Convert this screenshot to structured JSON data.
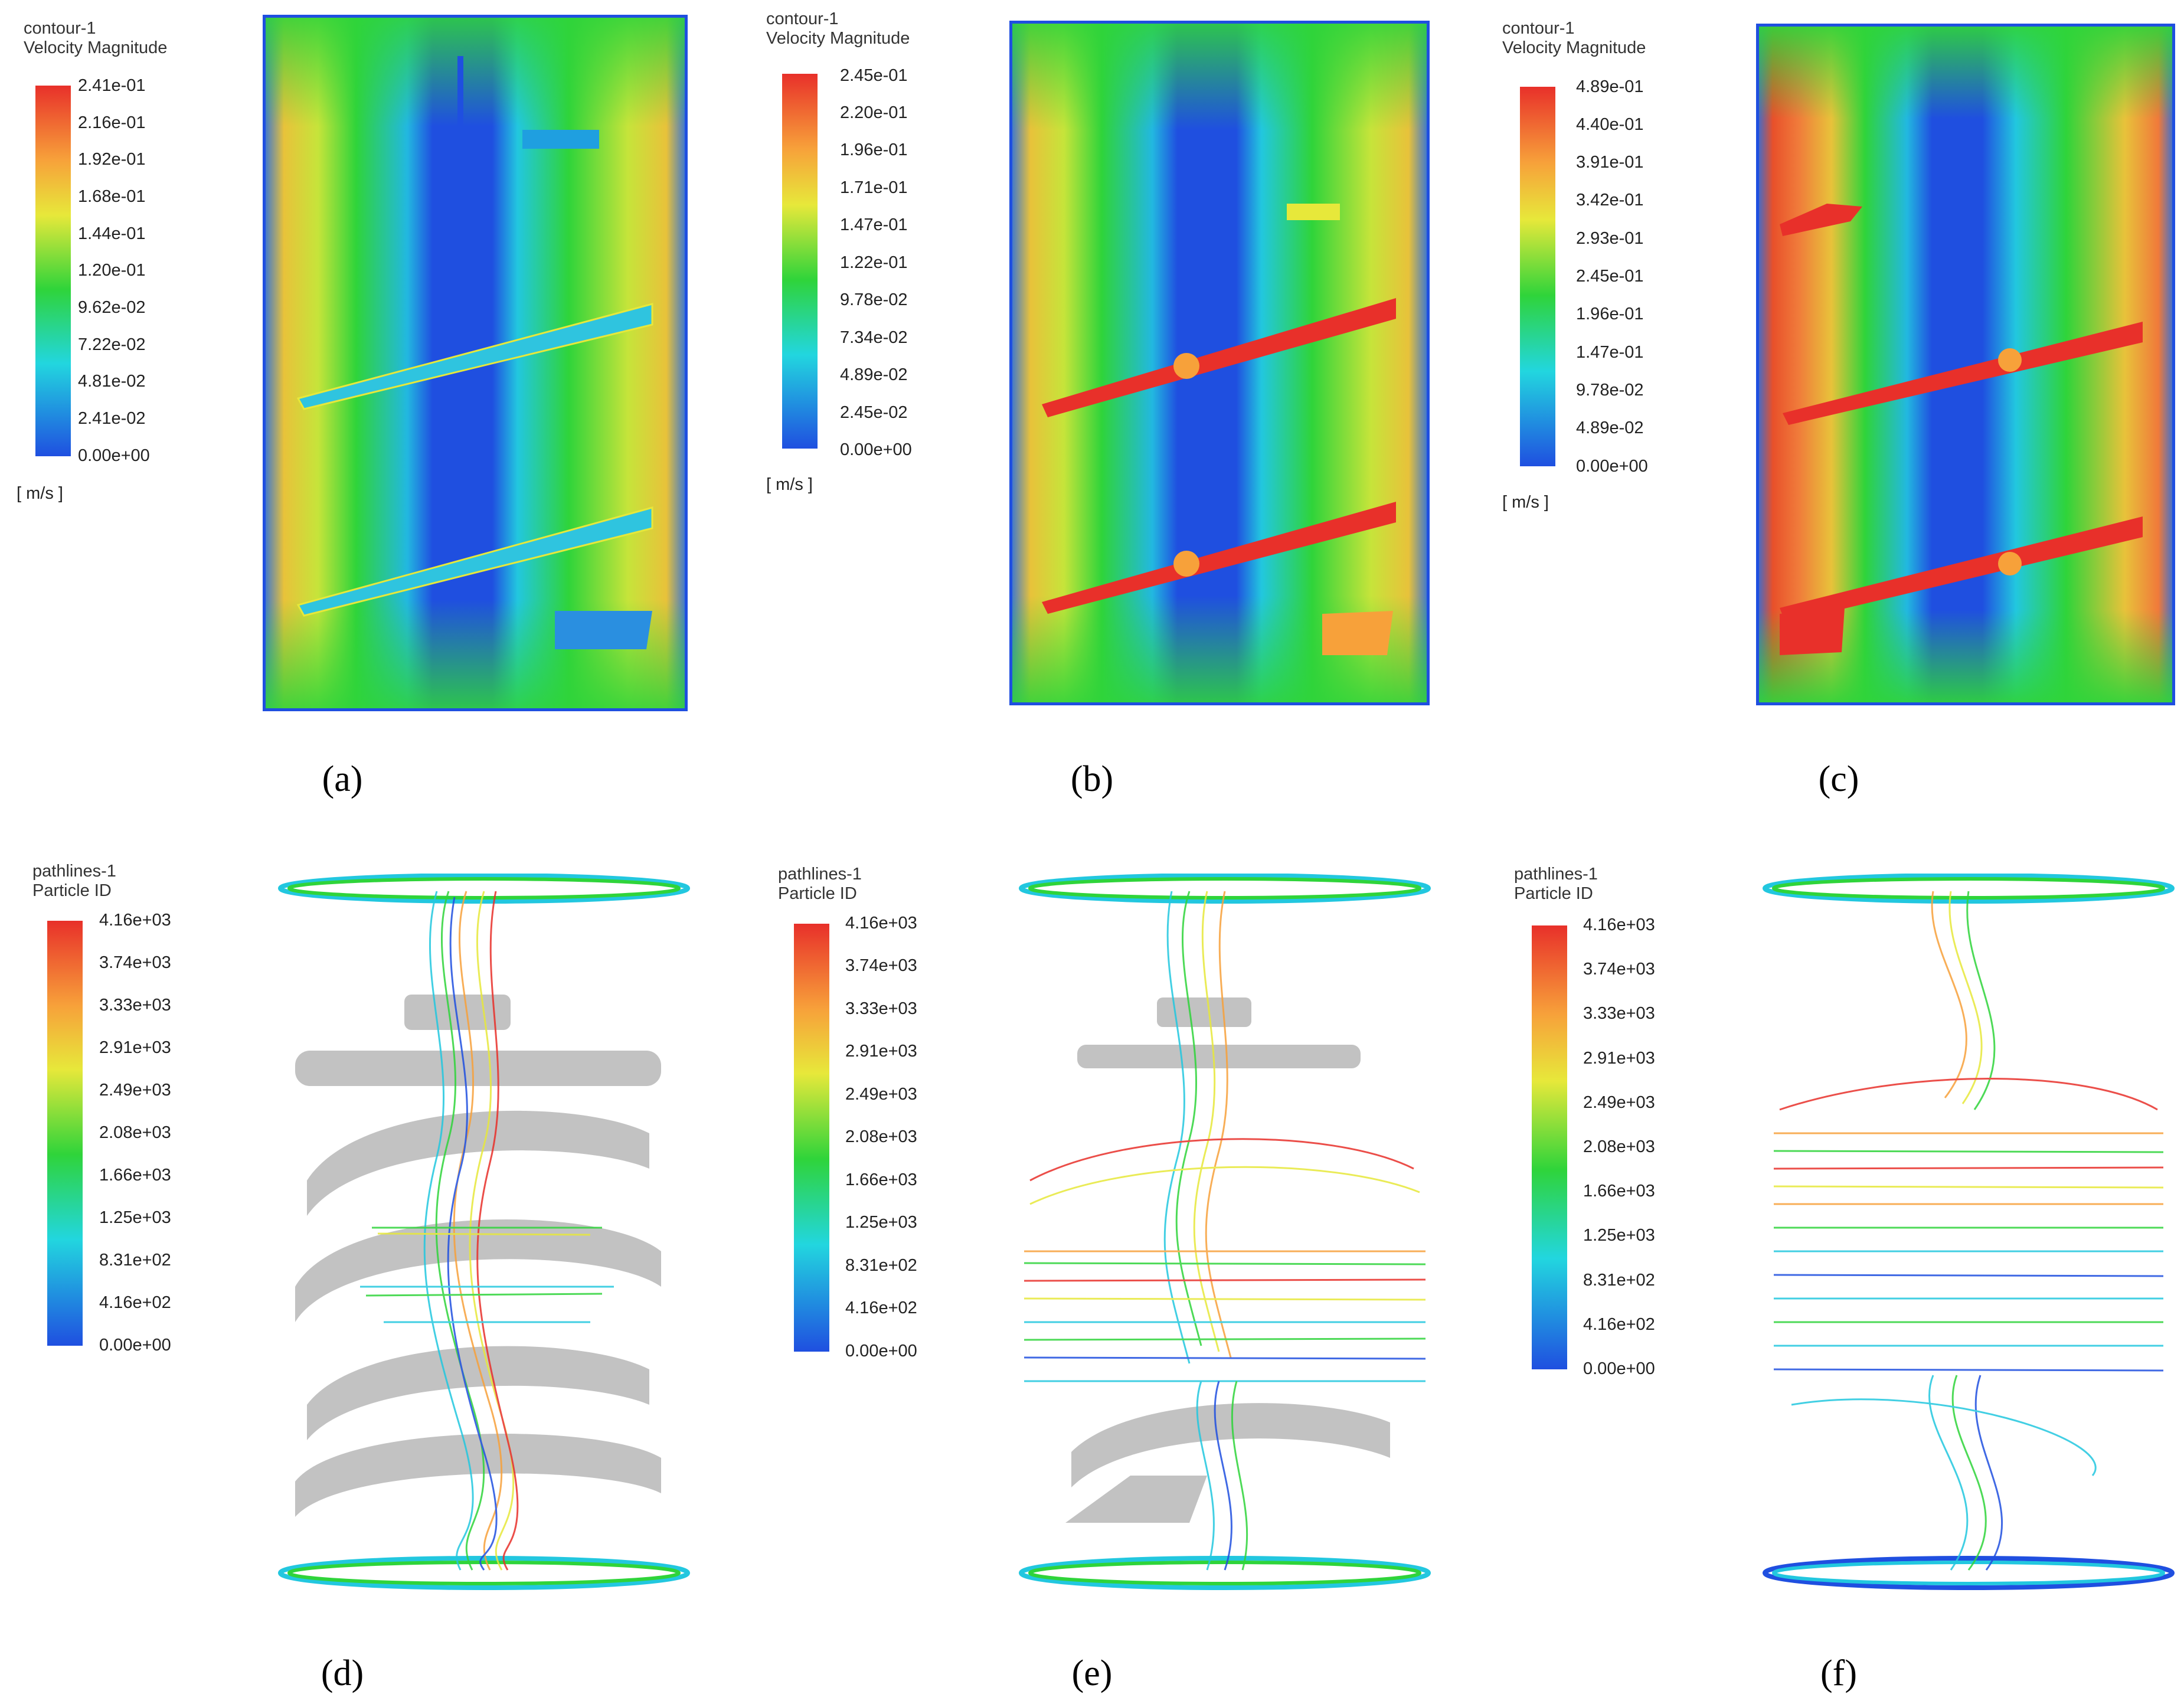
{
  "panels": [
    {
      "id": "a",
      "label": "(a)",
      "kind": "contour",
      "colorbar": {
        "title_line1": "contour-1",
        "title_line2": "Velocity Magnitude",
        "ticks": [
          "2.41e-01",
          "2.16e-01",
          "1.92e-01",
          "1.68e-01",
          "1.44e-01",
          "1.20e-01",
          "9.62e-02",
          "7.22e-02",
          "4.81e-02",
          "2.41e-02",
          "0.00e+00"
        ],
        "unit": "[ m/s ]"
      }
    },
    {
      "id": "b",
      "label": "(b)",
      "kind": "contour",
      "colorbar": {
        "title_line1": "contour-1",
        "title_line2": "Velocity Magnitude",
        "ticks": [
          "2.45e-01",
          "2.20e-01",
          "1.96e-01",
          "1.71e-01",
          "1.47e-01",
          "1.22e-01",
          "9.78e-02",
          "7.34e-02",
          "4.89e-02",
          "2.45e-02",
          "0.00e+00"
        ],
        "unit": "[ m/s ]"
      }
    },
    {
      "id": "c",
      "label": "(c)",
      "kind": "contour",
      "colorbar": {
        "title_line1": "contour-1",
        "title_line2": "Velocity Magnitude",
        "ticks": [
          "4.89e-01",
          "4.40e-01",
          "3.91e-01",
          "3.42e-01",
          "2.93e-01",
          "2.45e-01",
          "1.96e-01",
          "1.47e-01",
          "9.78e-02",
          "4.89e-02",
          "0.00e+00"
        ],
        "unit": "[ m/s ]"
      }
    },
    {
      "id": "d",
      "label": "(d)",
      "kind": "pathlines",
      "colorbar": {
        "title_line1": "pathlines-1",
        "title_line2": "Particle ID",
        "ticks": [
          "4.16e+03",
          "3.74e+03",
          "3.33e+03",
          "2.91e+03",
          "2.49e+03",
          "2.08e+03",
          "1.66e+03",
          "1.25e+03",
          "8.31e+02",
          "4.16e+02",
          "0.00e+00"
        ],
        "unit": ""
      }
    },
    {
      "id": "e",
      "label": "(e)",
      "kind": "pathlines",
      "colorbar": {
        "title_line1": "pathlines-1",
        "title_line2": "Particle ID",
        "ticks": [
          "4.16e+03",
          "3.74e+03",
          "3.33e+03",
          "2.91e+03",
          "2.49e+03",
          "2.08e+03",
          "1.66e+03",
          "1.25e+03",
          "8.31e+02",
          "4.16e+02",
          "0.00e+00"
        ],
        "unit": ""
      }
    },
    {
      "id": "f",
      "label": "(f)",
      "kind": "pathlines",
      "colorbar": {
        "title_line1": "pathlines-1",
        "title_line2": "Particle ID",
        "ticks": [
          "4.16e+03",
          "3.74e+03",
          "3.33e+03",
          "2.91e+03",
          "2.49e+03",
          "2.08e+03",
          "1.66e+03",
          "1.25e+03",
          "8.31e+02",
          "4.16e+02",
          "0.00e+00"
        ],
        "unit": ""
      }
    }
  ],
  "colors": {
    "rainbow": [
      "#e8302a",
      "#f7a13a",
      "#e7e83a",
      "#2fd43a",
      "#22d6df",
      "#1f4fe0"
    ],
    "impeller_gray": "#c2c2c2"
  }
}
